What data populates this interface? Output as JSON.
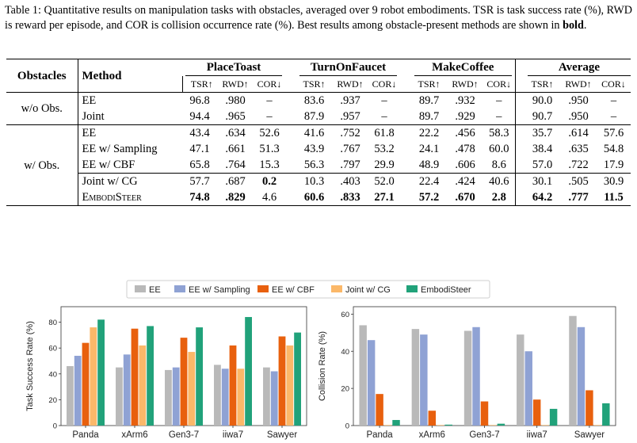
{
  "caption": {
    "label": "Table 1:",
    "text": "Quantitative results on manipulation tasks with obstacles, averaged over 9 robot embodiments. TSR is task success rate (%), RWD is reward per episode, and COR is collision occurrence rate (%). Best results among obstacle-present methods are shown in",
    "bold_word": "bold",
    "end": "."
  },
  "table": {
    "col_obstacles": "Obstacles",
    "col_method": "Method",
    "tasks": [
      "PlaceToast",
      "TurnOnFaucet",
      "MakeCoffee",
      "Average"
    ],
    "metrics": [
      "TSR↑",
      "RWD↑",
      "COR↓"
    ],
    "groups": [
      {
        "label": "w/o Obs.",
        "subgroups": [
          {
            "rows": [
              {
                "method": "EE",
                "values": [
                  "96.8",
                  ".980",
                  "–",
                  "83.6",
                  ".937",
                  "–",
                  "89.7",
                  ".932",
                  "–",
                  "90.0",
                  ".950",
                  "–"
                ],
                "bold": []
              },
              {
                "method": "Joint",
                "values": [
                  "94.4",
                  ".965",
                  "–",
                  "87.9",
                  ".957",
                  "–",
                  "89.7",
                  ".929",
                  "–",
                  "90.7",
                  ".950",
                  "–"
                ],
                "bold": []
              }
            ]
          }
        ]
      },
      {
        "label": "w/ Obs.",
        "subgroups": [
          {
            "rows": [
              {
                "method": "EE",
                "values": [
                  "43.4",
                  ".634",
                  "52.6",
                  "41.6",
                  ".752",
                  "61.8",
                  "22.2",
                  ".456",
                  "58.3",
                  "35.7",
                  ".614",
                  "57.6"
                ],
                "bold": []
              },
              {
                "method": "EE w/ Sampling",
                "values": [
                  "47.1",
                  ".661",
                  "51.3",
                  "43.9",
                  ".767",
                  "53.2",
                  "24.1",
                  ".478",
                  "60.0",
                  "38.4",
                  ".635",
                  "54.8"
                ],
                "bold": []
              },
              {
                "method": "EE w/ CBF",
                "values": [
                  "65.8",
                  ".764",
                  "15.3",
                  "56.3",
                  ".797",
                  "29.9",
                  "48.9",
                  ".606",
                  "8.6",
                  "57.0",
                  ".722",
                  "17.9"
                ],
                "bold": []
              }
            ]
          },
          {
            "rows": [
              {
                "method": "Joint w/ CG",
                "values": [
                  "57.7",
                  ".687",
                  "0.2",
                  "10.3",
                  ".403",
                  "52.0",
                  "22.4",
                  ".424",
                  "40.6",
                  "30.1",
                  ".505",
                  "30.9"
                ],
                "bold": [
                  2
                ]
              },
              {
                "method": "EmbodiSteer",
                "sc": true,
                "values": [
                  "74.8",
                  ".829",
                  "4.6",
                  "60.6",
                  ".833",
                  "27.1",
                  "57.2",
                  ".670",
                  "2.8",
                  "64.2",
                  ".777",
                  "11.5"
                ],
                "bold": [
                  0,
                  1,
                  3,
                  4,
                  5,
                  6,
                  7,
                  8,
                  9,
                  10,
                  11
                ]
              }
            ]
          }
        ]
      }
    ]
  },
  "legend": {
    "items": [
      {
        "name": "EE",
        "color": "#b9b9b9"
      },
      {
        "name": "EE w/ Sampling",
        "color": "#8fa2d4"
      },
      {
        "name": "EE w/ CBF",
        "color": "#e8600e"
      },
      {
        "name": "Joint w/ CG",
        "color": "#fbb869"
      },
      {
        "name": "EmbodiSteer",
        "color": "#21a27a"
      }
    ]
  },
  "chart_data": [
    {
      "type": "bar",
      "categories": [
        "Panda",
        "xArm6",
        "Gen3-7",
        "iiwa7",
        "Sawyer"
      ],
      "ylabel": "Task Success Rate (%)",
      "ylim": [
        0,
        92
      ],
      "yticks": [
        0,
        20,
        40,
        60,
        80
      ],
      "grid": false,
      "series": [
        {
          "name": "EE",
          "values": [
            46,
            45,
            43,
            47,
            45
          ]
        },
        {
          "name": "EE w/ Sampling",
          "values": [
            54,
            55,
            45,
            44,
            42
          ]
        },
        {
          "name": "EE w/ CBF",
          "values": [
            64,
            75,
            68,
            62,
            69
          ]
        },
        {
          "name": "Joint w/ CG",
          "values": [
            76,
            62,
            57,
            44,
            62
          ]
        },
        {
          "name": "EmbodiSteer",
          "values": [
            82,
            77,
            76,
            84,
            72
          ]
        }
      ]
    },
    {
      "type": "bar",
      "categories": [
        "Panda",
        "xArm6",
        "Gen3-7",
        "iiwa7",
        "Sawyer"
      ],
      "ylabel": "Collision Rate (%)",
      "ylim": [
        0,
        64
      ],
      "yticks": [
        0,
        20,
        40,
        60
      ],
      "grid": false,
      "series": [
        {
          "name": "EE",
          "values": [
            54,
            52,
            51,
            49,
            59
          ]
        },
        {
          "name": "EE w/ Sampling",
          "values": [
            46,
            49,
            53,
            40,
            53
          ]
        },
        {
          "name": "EE w/ CBF",
          "values": [
            17,
            8,
            13,
            14,
            19
          ]
        },
        {
          "name": "Joint w/ CG",
          "values": [
            0.3,
            0.3,
            0.3,
            0.3,
            0.3
          ]
        },
        {
          "name": "EmbodiSteer",
          "values": [
            3,
            0.5,
            1,
            9,
            12
          ]
        }
      ]
    }
  ]
}
